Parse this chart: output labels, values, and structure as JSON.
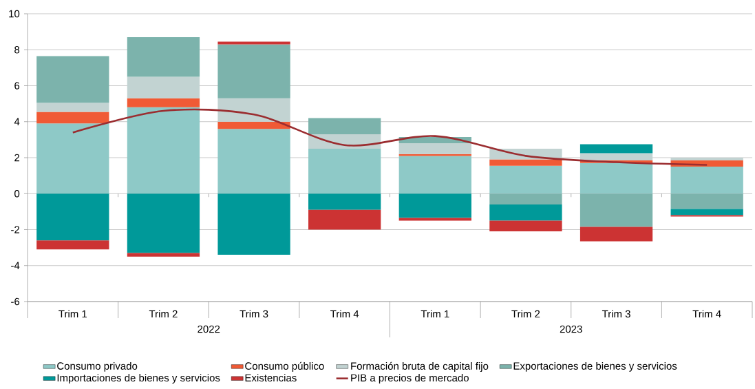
{
  "chart_data": {
    "type": "bar",
    "stacked": true,
    "categories": [
      "Trim 1",
      "Trim 2",
      "Trim 3",
      "Trim 4",
      "Trim 1",
      "Trim 2",
      "Trim 3",
      "Trim 4"
    ],
    "annotations": [
      "2022",
      "2023"
    ],
    "ylim": [
      -6,
      10
    ],
    "yticks": [
      -6,
      -4,
      -2,
      0,
      2,
      4,
      6,
      8,
      10
    ],
    "grid": "y",
    "legend": "bottom",
    "series": [
      {
        "name": "Consumo privado",
        "color": "#8ec9c7",
        "values": [
          3.9,
          4.8,
          3.6,
          2.5,
          2.1,
          1.55,
          1.7,
          1.5
        ]
      },
      {
        "name": "Consumo público",
        "color": "#f05a35",
        "values": [
          0.65,
          0.5,
          0.4,
          null,
          0.1,
          0.35,
          0.15,
          0.35
        ]
      },
      {
        "name": "Formación bruta de capital fijo",
        "color": "#c2d3d2",
        "values": [
          0.5,
          1.2,
          1.3,
          0.8,
          0.6,
          0.6,
          0.4,
          0.15
        ]
      },
      {
        "name": "Exportaciones de bienes y servicios",
        "color": "#7cb3ac",
        "values": [
          2.6,
          2.2,
          3.0,
          0.9,
          0.35,
          -0.6,
          -1.85,
          -0.85
        ]
      },
      {
        "name": "Importaciones de bienes y servicios",
        "color": "#009999",
        "values": [
          -2.6,
          -3.3,
          -3.4,
          -0.9,
          -1.35,
          -0.9,
          0.5,
          -0.35
        ]
      },
      {
        "name": "Existencias",
        "color": "#cc3333",
        "values": [
          -0.5,
          -0.2,
          0.15,
          -1.1,
          -0.15,
          -0.6,
          -0.8,
          -0.07
        ]
      },
      {
        "name": "PIB a precios de mercado",
        "type": "line",
        "color": "#9b2d30",
        "values": [
          3.4,
          4.6,
          4.4,
          2.7,
          3.2,
          2.1,
          1.75,
          1.6
        ]
      }
    ]
  }
}
